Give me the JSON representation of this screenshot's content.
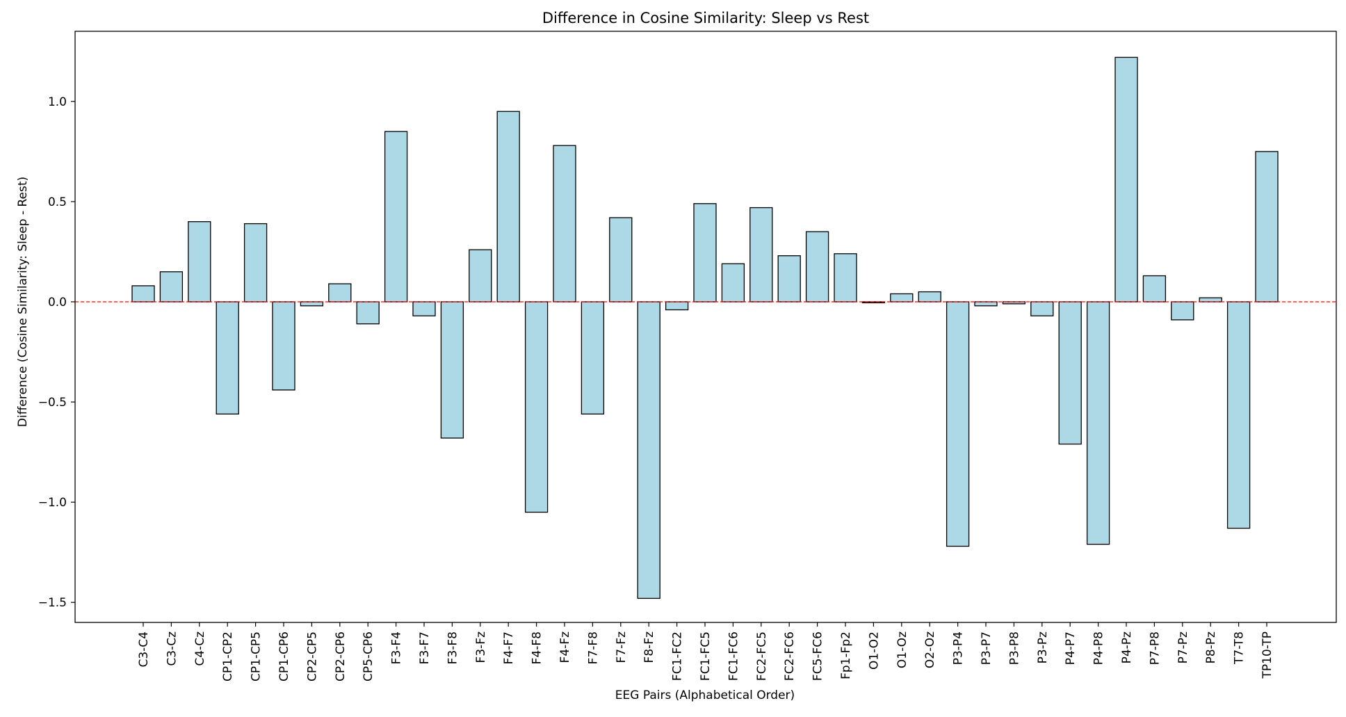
{
  "chart_data": {
    "type": "bar",
    "title": "Difference in Cosine Similarity: Sleep vs Rest",
    "xlabel": "EEG Pairs (Alphabetical Order)",
    "ylabel": "Difference (Cosine Similarity: Sleep - Rest)",
    "ylim": [
      -1.6,
      1.35
    ],
    "yticks": [
      -1.5,
      -1.0,
      -0.5,
      0.0,
      0.5,
      1.0
    ],
    "ytick_labels": [
      "−1.5",
      "−1.0",
      "−0.5",
      "0.0",
      "0.5",
      "1.0"
    ],
    "grid": false,
    "legend": "none",
    "bar_color": "#add8e6",
    "bar_edge_color": "#000000",
    "reference_line": {
      "y": 0.0,
      "color": "#ff0000",
      "style": "dashed"
    },
    "categories": [
      "C3-C4",
      "C3-Cz",
      "C4-Cz",
      "CP1-CP2",
      "CP1-CP5",
      "CP1-CP6",
      "CP2-CP5",
      "CP2-CP6",
      "CP5-CP6",
      "F3-F4",
      "F3-F7",
      "F3-F8",
      "F3-Fz",
      "F4-F7",
      "F4-F8",
      "F4-Fz",
      "F7-F8",
      "F7-Fz",
      "F8-Fz",
      "FC1-FC2",
      "FC1-FC5",
      "FC1-FC6",
      "FC2-FC5",
      "FC2-FC6",
      "FC5-FC6",
      "Fp1-Fp2",
      "O1-O2",
      "O1-Oz",
      "O2-Oz",
      "P3-P4",
      "P3-P7",
      "P3-P8",
      "P3-Pz",
      "P4-P7",
      "P4-P8",
      "P4-Pz",
      "P7-P8",
      "P7-Pz",
      "P8-Pz",
      "T7-T8",
      "TP10-TP"
    ],
    "values": [
      0.08,
      0.15,
      0.4,
      -0.56,
      0.39,
      -0.44,
      -0.02,
      0.09,
      -0.11,
      0.85,
      -0.07,
      -0.68,
      0.26,
      0.95,
      -1.05,
      0.78,
      -0.56,
      0.42,
      -1.48,
      -0.04,
      0.49,
      0.19,
      0.47,
      0.23,
      0.35,
      0.24,
      -0.005,
      0.04,
      0.05,
      -1.22,
      -0.02,
      -0.01,
      -0.07,
      -0.71,
      -1.21,
      1.22,
      0.13,
      -0.09,
      0.02,
      -1.13,
      0.75
    ]
  }
}
